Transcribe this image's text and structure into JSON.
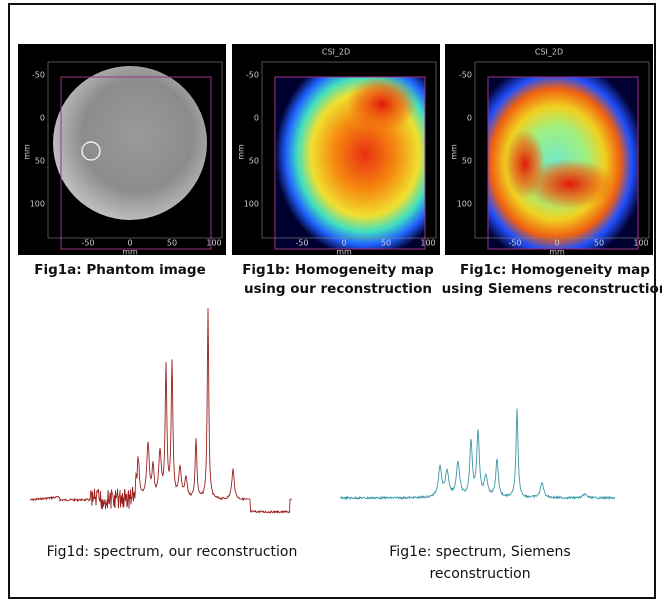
{
  "panels": [
    {
      "caption": [
        "Fig1a: Phantom image"
      ],
      "x_label": "mm",
      "y_label": "mm",
      "xticks": [
        "-50",
        "0",
        "50",
        "100"
      ],
      "yticks": [
        "-50",
        "0",
        "50",
        "100"
      ]
    },
    {
      "title": "CSI_2D",
      "caption": [
        "Fig1b: Homogeneity map",
        "using our reconstruction"
      ],
      "x_label": "mm",
      "y_label": "mm",
      "xticks": [
        "-50",
        "0",
        "50",
        "100"
      ],
      "yticks": [
        "-50",
        "0",
        "50",
        "100"
      ]
    },
    {
      "title": "CSI_2D",
      "caption": [
        "Fig1c: Homogeneity map",
        "using Siemens reconstruction"
      ],
      "x_label": "mm",
      "y_label": "mm",
      "xticks": [
        "-50",
        "0",
        "50",
        "100"
      ],
      "yticks": [
        "-50",
        "0",
        "50",
        "100"
      ]
    }
  ],
  "spectra": [
    {
      "caption": [
        "Fig1d: spectrum, our reconstruction"
      ]
    },
    {
      "caption": [
        "Fig1e: spectrum, Siemens",
        "reconstruction"
      ]
    }
  ]
}
